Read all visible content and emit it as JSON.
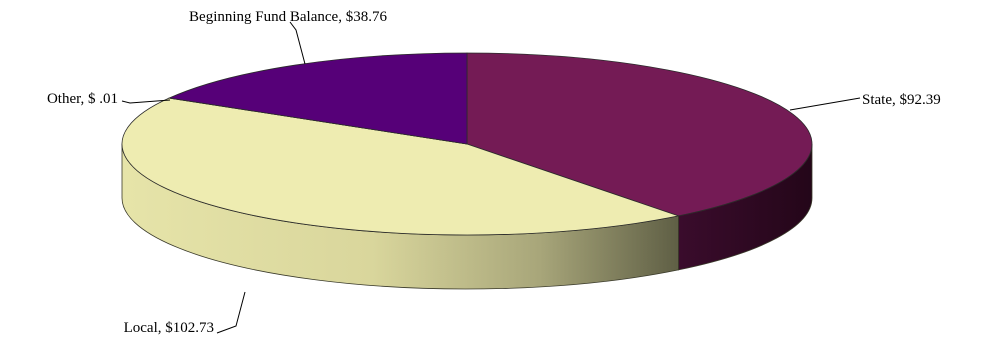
{
  "chart_data": {
    "type": "pie",
    "style": "3d",
    "title": "",
    "values_unit": "$",
    "slices": [
      {
        "label": "State",
        "value": 92.39,
        "display": "State, $92.39",
        "color": "#741b55",
        "side_color": "#2e0a24"
      },
      {
        "label": "Local",
        "value": 102.73,
        "display": "Local, $102.73",
        "color": "#eeecb1",
        "side_color": "#c9c78e"
      },
      {
        "label": "Other",
        "value": 0.01,
        "display": "Other, $ .01",
        "color": "#a9d6e3",
        "side_color": "#7fb0c0"
      },
      {
        "label": "Beginning Fund Balance",
        "value": 38.76,
        "display": "Beginning Fund Balance, $38.76",
        "color": "#560078",
        "side_color": "#2c003e"
      }
    ]
  }
}
